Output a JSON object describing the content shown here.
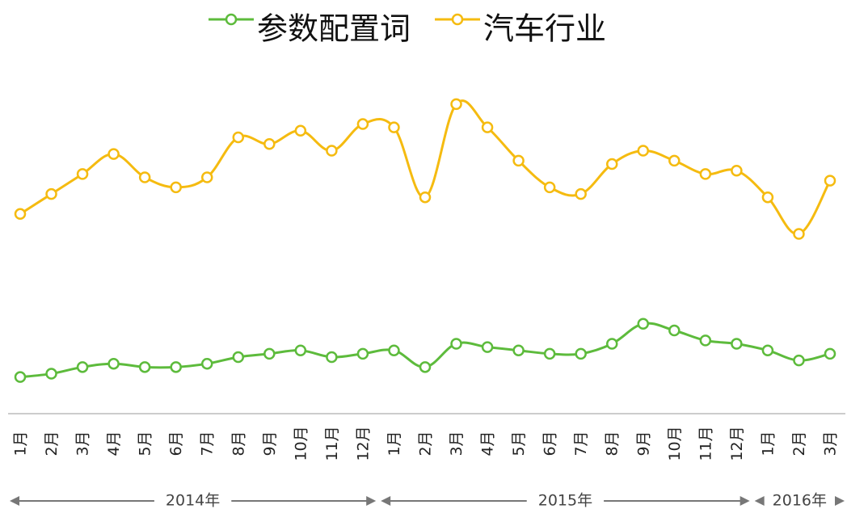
{
  "chart_data": {
    "type": "line",
    "groups": [
      {
        "name": "2014年",
        "categories": [
          "1月",
          "2月",
          "3月",
          "4月",
          "5月",
          "6月",
          "7月",
          "8月",
          "9月",
          "10月",
          "11月",
          "12月"
        ]
      },
      {
        "name": "2015年",
        "categories": [
          "1月",
          "2月",
          "3月",
          "4月",
          "5月",
          "6月",
          "7月",
          "8月",
          "9月",
          "10月",
          "11月",
          "12月"
        ]
      },
      {
        "name": "2016年",
        "categories": [
          "1月",
          "2月",
          "3月"
        ]
      }
    ],
    "series": [
      {
        "name": "参数配置词",
        "color": "#5dbb3c",
        "values": [
          11,
          12,
          14,
          15,
          14,
          14,
          15,
          17,
          18,
          19,
          17,
          18,
          19,
          14,
          21,
          20,
          19,
          18,
          18,
          21,
          27,
          25,
          22,
          21,
          19,
          16,
          18
        ]
      },
      {
        "name": "汽车行业",
        "color": "#f5bb10",
        "values": [
          60,
          66,
          72,
          78,
          71,
          68,
          71,
          83,
          81,
          85,
          79,
          87,
          86,
          65,
          93,
          86,
          76,
          68,
          66,
          75,
          79,
          76,
          72,
          73,
          65,
          54,
          70
        ]
      }
    ],
    "ylim": [
      0,
      100
    ]
  }
}
